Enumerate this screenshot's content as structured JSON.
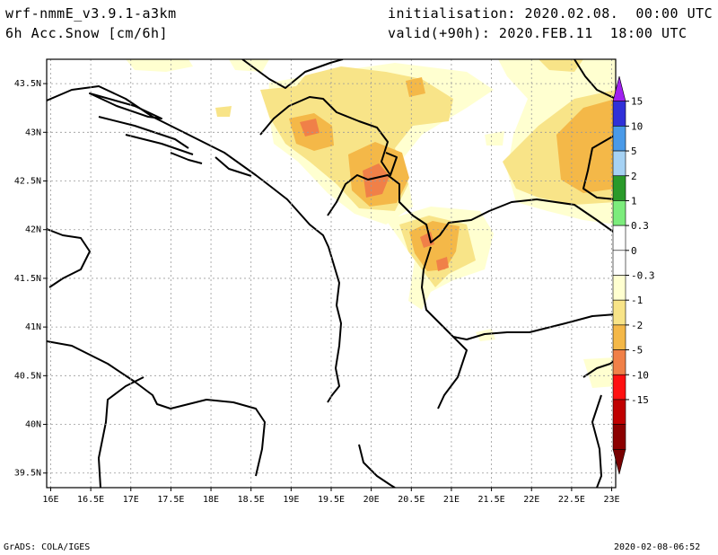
{
  "header": {
    "model": "wrf-nmmE_v3.9.1-a3km",
    "field": "6h Acc.Snow [cm/6h]",
    "init": "initialisation: 2020.02.08.  00:00 UTC",
    "valid": "valid(+90h): 2020.FEB.11  18:00 UTC"
  },
  "axes": {
    "lat_ticks": [
      "43.5N",
      "43N",
      "42.5N",
      "42N",
      "41.5N",
      "41N",
      "40.5N",
      "40N",
      "39.5N"
    ],
    "lon_ticks": [
      "16E",
      "16.5E",
      "17E",
      "17.5E",
      "18E",
      "18.5E",
      "19E",
      "19.5E",
      "20E",
      "20.5E",
      "21E",
      "21.5E",
      "22E",
      "22.5E",
      "23E"
    ],
    "lat_range": [
      39.35,
      43.75
    ],
    "lon_range": [
      15.95,
      23.05
    ]
  },
  "colorbar": {
    "labels": [
      "15",
      "10",
      "5",
      "2",
      "1",
      "0.3",
      "0",
      "-0.3",
      "-1",
      "-2",
      "-5",
      "-10",
      "-15"
    ],
    "colors": [
      "#a020f0",
      "#3030d8",
      "#4a9ae8",
      "#a6d2f4",
      "#2a9a2a",
      "#7cec7c",
      "#ffffff",
      "#ffffff",
      "#ffffd0",
      "#f8e488",
      "#f4b848",
      "#f08048",
      "#ff1010",
      "#c00000",
      "#8c0000",
      "#780000"
    ]
  },
  "footer": {
    "left": "GrADS: COLA/IGES",
    "right": "2020-02-08-06:52"
  }
}
